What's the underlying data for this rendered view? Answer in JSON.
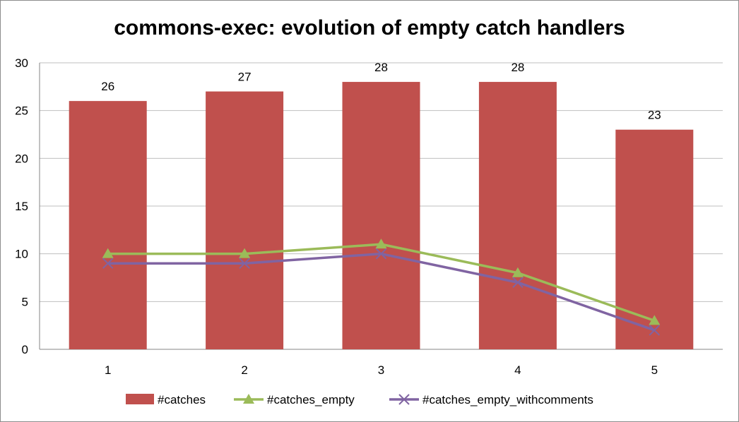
{
  "chart_data": {
    "type": "bar",
    "title": "commons-exec: evolution of empty catch handlers",
    "xlabel": "",
    "ylabel": "",
    "categories": [
      "1",
      "2",
      "3",
      "4",
      "5"
    ],
    "ylim": [
      0,
      30
    ],
    "yticks": [
      0,
      5,
      10,
      15,
      20,
      25,
      30
    ],
    "grid": true,
    "legend_position": "bottom",
    "series": [
      {
        "name": "#catches",
        "type": "bar",
        "color": "#C0504D",
        "values": [
          26,
          27,
          28,
          28,
          23
        ],
        "show_labels": true
      },
      {
        "name": "#catches_empty",
        "type": "line",
        "marker": "triangle",
        "color": "#9BBB59",
        "values": [
          10,
          10,
          11,
          8,
          3
        ]
      },
      {
        "name": "#catches_empty_withcomments",
        "type": "line",
        "marker": "x",
        "color": "#8064A2",
        "values": [
          9,
          9,
          10,
          7,
          2
        ]
      }
    ]
  }
}
